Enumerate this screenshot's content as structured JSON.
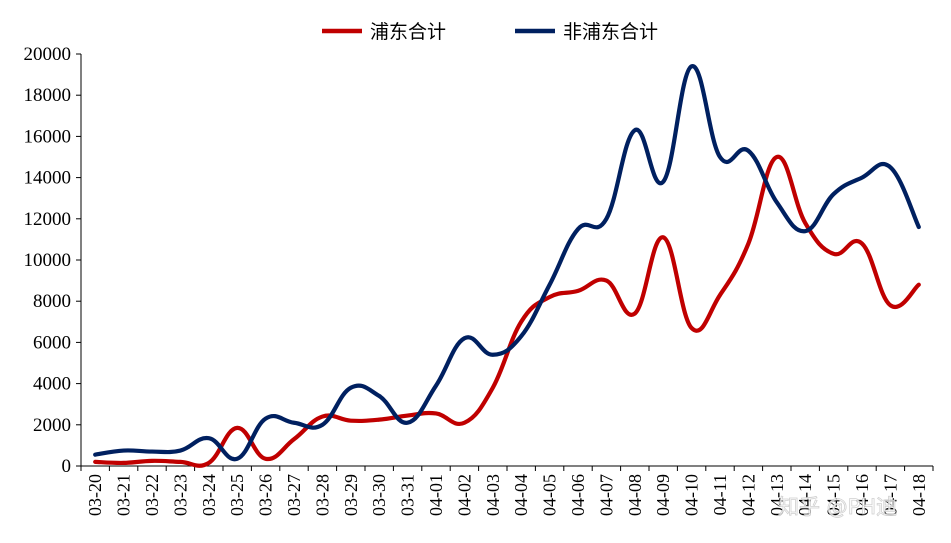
{
  "chart_data": {
    "type": "line",
    "title": "",
    "xlabel": "",
    "ylabel": "",
    "ylim": [
      0,
      20000
    ],
    "yticks": [
      0,
      2000,
      4000,
      6000,
      8000,
      10000,
      12000,
      14000,
      16000,
      18000,
      20000
    ],
    "legend_position": "top-center",
    "grid": false,
    "categories": [
      "03-20",
      "03-21",
      "03-22",
      "03-23",
      "03-24",
      "03-25",
      "03-26",
      "03-27",
      "03-28",
      "03-29",
      "03-30",
      "03-31",
      "04-01",
      "04-02",
      "04-03",
      "04-04",
      "04-05",
      "04-06",
      "04-07",
      "04-08",
      "04-09",
      "04-10",
      "04-11",
      "04-12",
      "04-13",
      "04-14",
      "04-15",
      "04-16",
      "04-17",
      "04-18"
    ],
    "series": [
      {
        "name": "浦东合计",
        "color": "#c00000",
        "values": [
          200,
          150,
          250,
          200,
          150,
          1850,
          350,
          1300,
          2400,
          2200,
          2250,
          2450,
          2550,
          2100,
          3800,
          7000,
          8200,
          8500,
          9000,
          7400,
          11100,
          6700,
          8300,
          10800,
          15000,
          11800,
          10300,
          10800,
          7800,
          8800
        ]
      },
      {
        "name": "非浦东合计",
        "color": "#002060",
        "values": [
          550,
          750,
          700,
          750,
          1350,
          350,
          2300,
          2100,
          2000,
          3800,
          3400,
          2100,
          3900,
          6200,
          5400,
          6300,
          8800,
          11500,
          12000,
          16300,
          13800,
          19400,
          15000,
          15300,
          12800,
          11400,
          13200,
          14000,
          14500,
          11600
        ]
      }
    ]
  },
  "watermark": "知乎 @PH迪"
}
